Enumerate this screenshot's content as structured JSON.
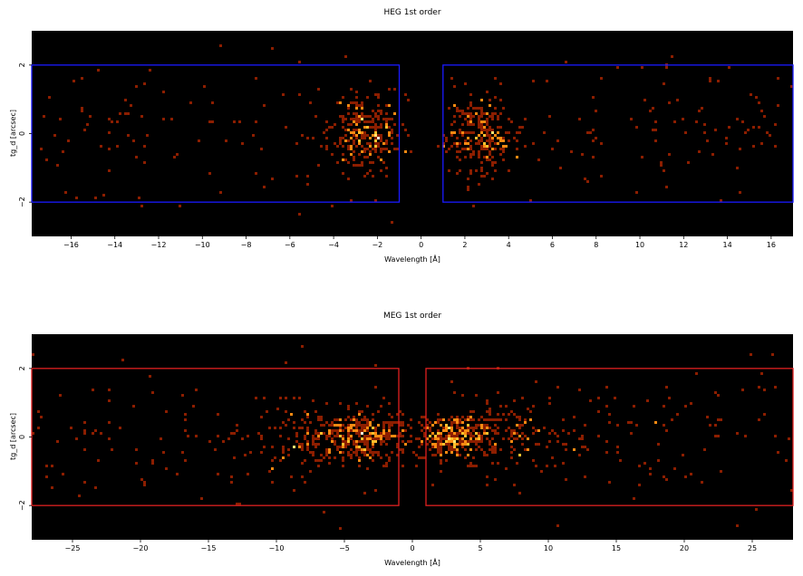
{
  "chart_data": [
    {
      "type": "heatmap",
      "title": "HEG 1st order",
      "xlabel": "Wavelength [Å]",
      "ylabel": "tg_d [arcsec]",
      "xlim": [
        -17.8,
        17.0
      ],
      "ylim": [
        -3.0,
        3.0
      ],
      "xticks": [
        -16,
        -14,
        -12,
        -10,
        -8,
        -6,
        -4,
        -2,
        0,
        2,
        4,
        6,
        8,
        10,
        12,
        14,
        16
      ],
      "yticks": [
        -2,
        0,
        2
      ],
      "grid": false,
      "colormap": "black-red-orange-yellow-white",
      "background_color": "#000000",
      "region_color": "#1a1aff",
      "regions": [
        {
          "x": [
            -17.8,
            -1.0
          ],
          "y": [
            -2.0,
            2.0
          ]
        },
        {
          "x": [
            1.0,
            17.0
          ],
          "y": [
            -2.0,
            2.0
          ]
        }
      ],
      "clusters": [
        {
          "x": -2.5,
          "y": 0.0,
          "sx": 0.8,
          "sy": 0.55,
          "weight": 1.0
        },
        {
          "x": 2.7,
          "y": 0.0,
          "sx": 0.75,
          "sy": 0.55,
          "weight": 0.9
        }
      ],
      "seed": 11
    },
    {
      "type": "heatmap",
      "title": "MEG 1st order",
      "xlabel": "Wavelength [Å]",
      "ylabel": "tg_d [arcsec]",
      "xlim": [
        -28.0,
        28.0
      ],
      "ylim": [
        -3.0,
        3.0
      ],
      "xticks": [
        -25,
        -20,
        -15,
        -10,
        -5,
        0,
        5,
        10,
        15,
        20,
        25
      ],
      "yticks": [
        -2,
        0,
        2
      ],
      "grid": false,
      "colormap": "black-red-orange-yellow-white",
      "background_color": "#000000",
      "region_color": "#e02020",
      "regions": [
        {
          "x": [
            -28.0,
            -1.0
          ],
          "y": [
            -2.0,
            2.0
          ]
        },
        {
          "x": [
            1.0,
            28.0
          ],
          "y": [
            -2.0,
            2.0
          ]
        }
      ],
      "clusters": [
        {
          "x": -3.5,
          "y": 0.0,
          "sx": 1.6,
          "sy": 0.35,
          "weight": 1.0
        },
        {
          "x": 3.0,
          "y": 0.0,
          "sx": 1.3,
          "sy": 0.35,
          "weight": 1.0
        },
        {
          "x": -7.0,
          "y": 0.0,
          "sx": 2.2,
          "sy": 0.45,
          "weight": 0.6
        },
        {
          "x": 7.0,
          "y": 0.0,
          "sx": 2.2,
          "sy": 0.45,
          "weight": 0.6
        }
      ],
      "seed": 29
    }
  ]
}
